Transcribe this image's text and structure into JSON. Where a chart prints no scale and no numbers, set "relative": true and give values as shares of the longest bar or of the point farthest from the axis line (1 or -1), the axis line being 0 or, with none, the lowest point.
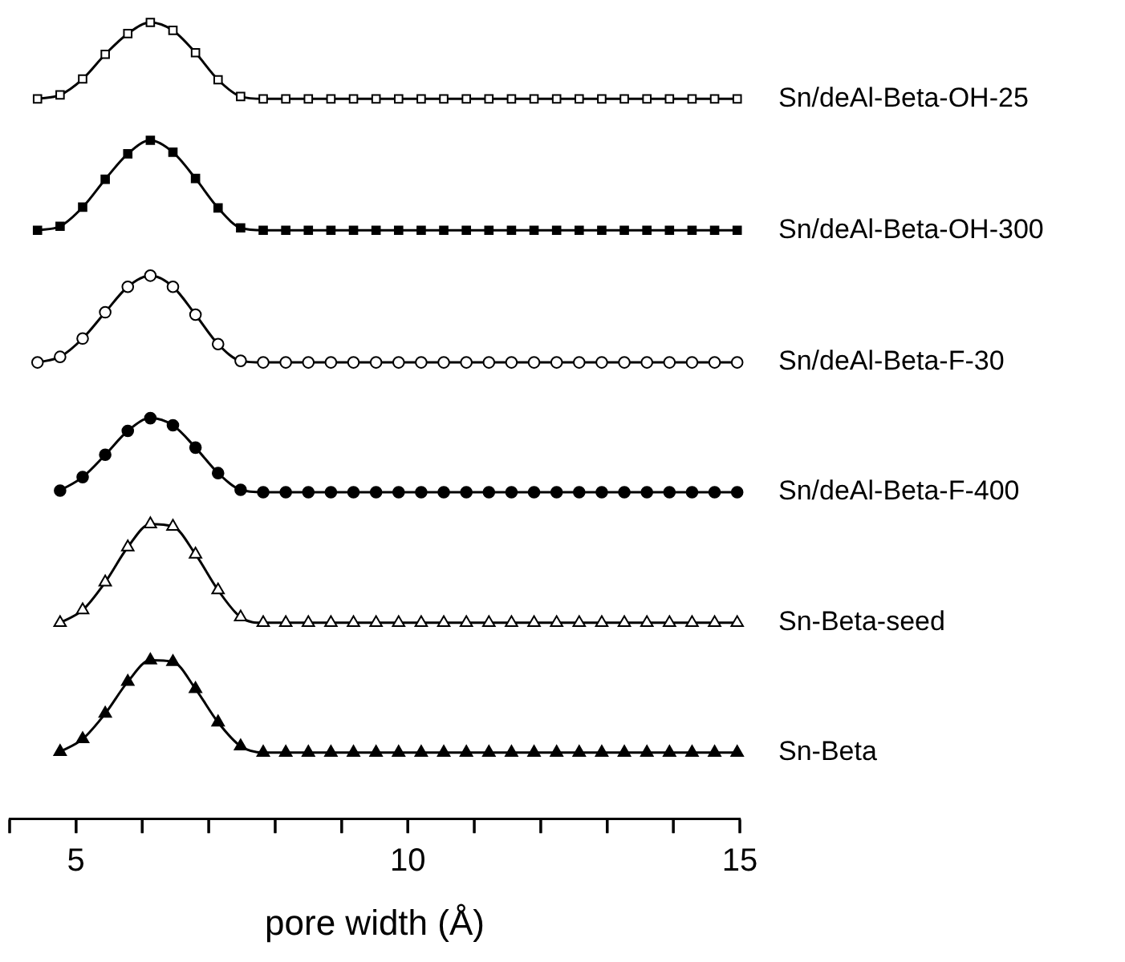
{
  "chart_data": {
    "type": "line",
    "relative": true,
    "xlabel": "pore width (Å)",
    "legend": false,
    "grid": false,
    "tick_labels": "x",
    "xlim": [
      4,
      15
    ],
    "xticks": [
      {
        "value": 4,
        "label": null
      },
      5,
      {
        "value": 6,
        "label": null
      },
      {
        "value": 7,
        "label": null
      },
      {
        "value": 8,
        "label": null
      },
      {
        "value": 9,
        "label": null
      },
      10,
      {
        "value": 11,
        "label": null
      },
      {
        "value": 12,
        "label": null
      },
      {
        "value": 13,
        "label": null
      },
      {
        "value": 14,
        "label": null
      },
      15
    ],
    "series": [
      {
        "name": "Sn/deAl-Beta-OH-25",
        "color": "#ffffff",
        "marker": "square",
        "x": [
          4.42,
          4.76,
          5.1,
          5.44,
          5.78,
          6.12,
          6.46,
          6.8,
          7.14,
          7.48,
          7.82,
          8.16,
          8.5,
          8.84,
          9.18,
          9.52,
          9.86,
          10.2,
          10.54,
          10.88,
          11.22,
          11.56,
          11.9,
          12.24,
          12.58,
          12.92,
          13.26,
          13.6,
          13.94,
          14.28,
          14.62,
          14.96
        ],
        "values": [
          0.904,
          0.909,
          0.929,
          0.96,
          0.986,
          1,
          0.99,
          0.962,
          0.928,
          0.907,
          0.904,
          0.904,
          0.904,
          0.904,
          0.904,
          0.904,
          0.904,
          0.904,
          0.904,
          0.904,
          0.904,
          0.904,
          0.904,
          0.904,
          0.904,
          0.904,
          0.904,
          0.904,
          0.904,
          0.904,
          0.904,
          0.904
        ]
      },
      {
        "name": "Sn/deAl-Beta-OH-300",
        "color": "#000000",
        "marker": "square",
        "x": [
          4.42,
          4.76,
          5.1,
          5.44,
          5.78,
          6.12,
          6.46,
          6.8,
          7.14,
          7.48,
          7.82,
          8.16,
          8.5,
          8.84,
          9.18,
          9.52,
          9.86,
          10.2,
          10.54,
          10.88,
          11.22,
          11.56,
          11.9,
          12.24,
          12.58,
          12.92,
          13.26,
          13.6,
          13.94,
          14.28,
          14.62,
          14.96
        ],
        "values": [
          0.739,
          0.744,
          0.768,
          0.803,
          0.835,
          0.852,
          0.837,
          0.804,
          0.767,
          0.742,
          0.739,
          0.739,
          0.739,
          0.739,
          0.739,
          0.739,
          0.739,
          0.739,
          0.739,
          0.739,
          0.739,
          0.739,
          0.739,
          0.739,
          0.739,
          0.739,
          0.739,
          0.739,
          0.739,
          0.739,
          0.739,
          0.739
        ]
      },
      {
        "name": "Sn/deAl-Beta-F-30",
        "color": "#ffffff",
        "marker": "circle",
        "x": [
          4.42,
          4.76,
          5.1,
          5.44,
          5.78,
          6.12,
          6.46,
          6.8,
          7.14,
          7.48,
          7.82,
          8.16,
          8.5,
          8.84,
          9.18,
          9.52,
          9.86,
          10.2,
          10.54,
          10.88,
          11.22,
          11.56,
          11.9,
          12.24,
          12.58,
          12.92,
          13.26,
          13.6,
          13.94,
          14.28,
          14.62,
          14.96
        ],
        "values": [
          0.573,
          0.58,
          0.603,
          0.636,
          0.668,
          0.682,
          0.668,
          0.633,
          0.596,
          0.575,
          0.573,
          0.573,
          0.573,
          0.573,
          0.573,
          0.573,
          0.573,
          0.573,
          0.573,
          0.573,
          0.573,
          0.573,
          0.573,
          0.573,
          0.573,
          0.573,
          0.573,
          0.573,
          0.573,
          0.573,
          0.573,
          0.573
        ]
      },
      {
        "name": "Sn/deAl-Beta-F-400",
        "color": "#000000",
        "marker": "circle",
        "x": [
          4.76,
          5.1,
          5.44,
          5.78,
          6.12,
          6.46,
          6.8,
          7.14,
          7.48,
          7.82,
          8.16,
          8.5,
          8.84,
          9.18,
          9.52,
          9.86,
          10.2,
          10.54,
          10.88,
          11.22,
          11.56,
          11.9,
          12.24,
          12.58,
          12.92,
          13.26,
          13.6,
          13.94,
          14.28,
          14.62,
          14.96
        ],
        "values": [
          0.412,
          0.429,
          0.457,
          0.487,
          0.503,
          0.494,
          0.466,
          0.434,
          0.413,
          0.41,
          0.41,
          0.41,
          0.41,
          0.41,
          0.41,
          0.41,
          0.41,
          0.41,
          0.41,
          0.41,
          0.41,
          0.41,
          0.41,
          0.41,
          0.41,
          0.41,
          0.41,
          0.41,
          0.41,
          0.41,
          0.41
        ]
      },
      {
        "name": "Sn-Beta-seed",
        "color": "#ffffff",
        "marker": "triangle",
        "x": [
          4.76,
          5.1,
          5.44,
          5.78,
          6.12,
          6.46,
          6.8,
          7.14,
          7.48,
          7.82,
          8.16,
          8.5,
          8.84,
          9.18,
          9.52,
          9.86,
          10.2,
          10.54,
          10.88,
          11.22,
          11.56,
          11.9,
          12.24,
          12.58,
          12.92,
          13.26,
          13.6,
          13.94,
          14.28,
          14.62,
          14.96
        ],
        "values": [
          0.246,
          0.262,
          0.297,
          0.341,
          0.37,
          0.367,
          0.332,
          0.287,
          0.253,
          0.246,
          0.246,
          0.246,
          0.246,
          0.246,
          0.246,
          0.246,
          0.246,
          0.246,
          0.246,
          0.246,
          0.246,
          0.246,
          0.246,
          0.246,
          0.246,
          0.246,
          0.246,
          0.246,
          0.246,
          0.246,
          0.246
        ]
      },
      {
        "name": "Sn-Beta",
        "color": "#000000",
        "marker": "triangle",
        "x": [
          4.76,
          5.1,
          5.44,
          5.78,
          6.12,
          6.46,
          6.8,
          7.14,
          7.48,
          7.82,
          8.16,
          8.5,
          8.84,
          9.18,
          9.52,
          9.86,
          10.2,
          10.54,
          10.88,
          11.22,
          11.56,
          11.9,
          12.24,
          12.58,
          12.92,
          13.26,
          13.6,
          13.94,
          14.28,
          14.62,
          14.96
        ],
        "values": [
          0.084,
          0.1,
          0.132,
          0.172,
          0.199,
          0.197,
          0.163,
          0.121,
          0.091,
          0.083,
          0.083,
          0.083,
          0.083,
          0.083,
          0.083,
          0.083,
          0.083,
          0.083,
          0.083,
          0.083,
          0.083,
          0.083,
          0.083,
          0.083,
          0.083,
          0.083,
          0.083,
          0.083,
          0.083,
          0.083,
          0.083
        ]
      }
    ]
  }
}
